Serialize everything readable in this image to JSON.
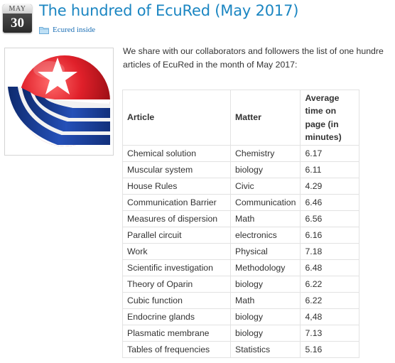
{
  "post": {
    "date": {
      "month": "MAY",
      "day": "30"
    },
    "title": "The hundred of EcuRed (May 2017)",
    "category": "Ecured inside",
    "intro_line1": "We share with our collaborators and followers the list of one hundre",
    "intro_line2": "articles of EcuRed in the month of May 2017:"
  },
  "table": {
    "headers": [
      "Article",
      "Matter",
      "Average time on page (in minutes)"
    ],
    "rows": [
      [
        "Chemical solution",
        "Chemistry",
        "6.17"
      ],
      [
        "Muscular system",
        "biology",
        "6.11"
      ],
      [
        "House Rules",
        "Civic",
        "4.29"
      ],
      [
        "Communication Barrier",
        "Communication",
        "6.46"
      ],
      [
        "Measures of dispersion",
        "Math",
        "6.56"
      ],
      [
        "Parallel circuit",
        "electronics",
        "6.16"
      ],
      [
        "Work",
        "Physical",
        "7.18"
      ],
      [
        "Scientific investigation",
        "Methodology",
        "6.48"
      ],
      [
        "Theory of Oparin",
        "biology",
        "6.22"
      ],
      [
        "Cubic function",
        "Math",
        "6.22"
      ],
      [
        "Endocrine glands",
        "biology",
        "4,48"
      ],
      [
        "Plasmatic membrane",
        "biology",
        "7.13"
      ],
      [
        "Tables of frequencies",
        "Statistics",
        "5.16"
      ]
    ]
  },
  "colors": {
    "title": "#1b86c2",
    "link": "#1b6fb5",
    "logo_red": "#e0202a",
    "logo_blue": "#1b3c8f"
  },
  "icons": {
    "category": "folder-icon",
    "logo": "ecured-logo"
  }
}
